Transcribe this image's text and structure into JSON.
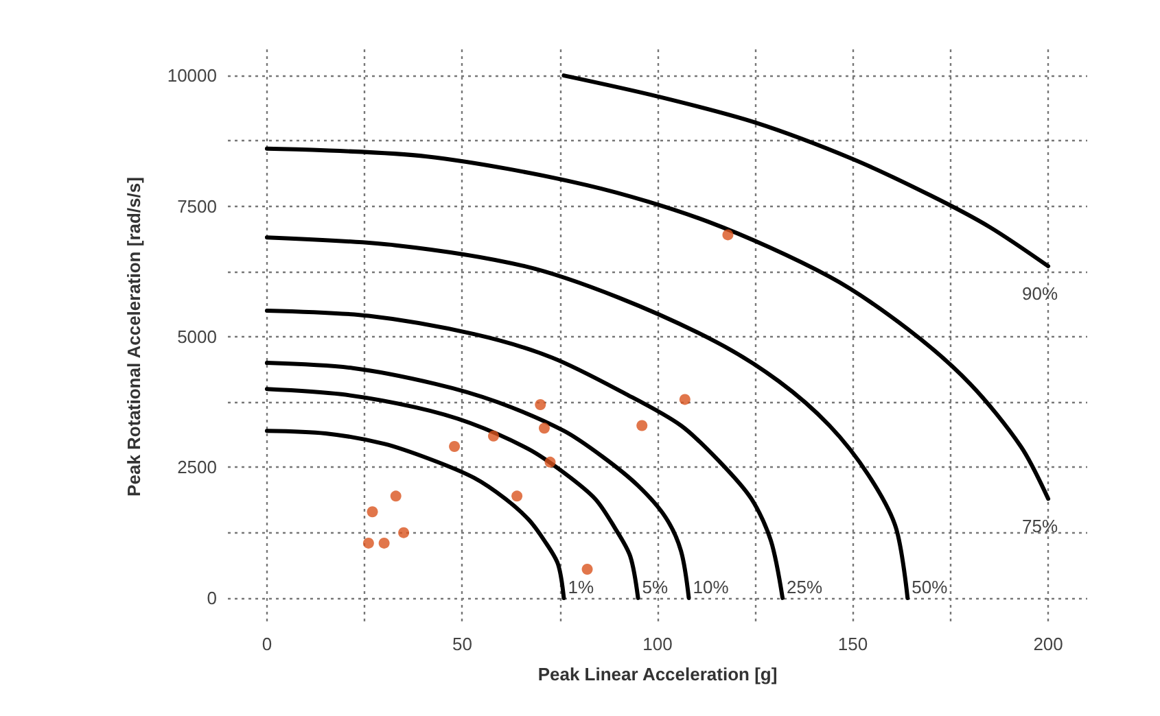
{
  "chart_data": {
    "type": "scatter",
    "xlabel": "Peak Linear Acceleration [g]",
    "ylabel": "Peak Rotational Acceleration [rad/s/s]",
    "xlim": [
      -10,
      210
    ],
    "ylim": [
      -500,
      10500
    ],
    "xticks": [
      0,
      {
        "value": 25,
        "label": null
      },
      50,
      {
        "value": 75,
        "label": null
      },
      100,
      {
        "value": 125,
        "label": null
      },
      150,
      {
        "value": 175,
        "label": null
      },
      200
    ],
    "yticks": [
      0,
      {
        "value": 1250,
        "label": null
      },
      2500,
      {
        "value": 3750,
        "label": null
      },
      5000,
      {
        "value": 6250,
        "label": null
      },
      7500,
      {
        "value": 8750,
        "label": null
      },
      10000
    ],
    "grid": true,
    "series": [
      {
        "marker": "circle",
        "color": "#d9541e",
        "x": [
          118,
          70,
          107,
          96,
          71,
          58,
          48,
          72.5,
          64,
          33,
          27,
          35,
          26,
          30,
          82
        ],
        "values": [
          6950,
          3700,
          3800,
          3300,
          3250,
          3100,
          2900,
          2600,
          1950,
          1950,
          1650,
          1250,
          1050,
          1050,
          550
        ]
      },
      {
        "type": "line",
        "name": "1%",
        "color": "#000000",
        "marker": "none",
        "line_style": "solid",
        "x": [
          0,
          15,
          30,
          42,
          53,
          61,
          67,
          71,
          74.5,
          76
        ],
        "values": [
          3200,
          3150,
          2950,
          2650,
          2300,
          1900,
          1500,
          1100,
          650,
          0
        ]
      },
      {
        "type": "line",
        "name": "5%",
        "color": "#000000",
        "marker": "none",
        "line_style": "solid",
        "x": [
          0,
          19,
          38,
          52,
          67,
          76,
          84,
          89,
          93,
          95
        ],
        "values": [
          4000,
          3900,
          3650,
          3350,
          2850,
          2400,
          1900,
          1350,
          800,
          0
        ]
      },
      {
        "type": "line",
        "name": "10%",
        "color": "#000000",
        "marker": "none",
        "line_style": "solid",
        "x": [
          0,
          22,
          43,
          59,
          76,
          86,
          95,
          102,
          106,
          108
        ],
        "values": [
          4500,
          4400,
          4100,
          3750,
          3200,
          2700,
          2150,
          1550,
          900,
          0
        ]
      },
      {
        "type": "line",
        "name": "25%",
        "color": "#000000",
        "marker": "none",
        "line_style": "solid",
        "x": [
          0,
          26,
          53,
          73,
          92,
          106,
          116,
          124,
          129,
          132
        ],
        "values": [
          5500,
          5400,
          5050,
          4600,
          3900,
          3300,
          2600,
          1900,
          1100,
          0
        ]
      },
      {
        "type": "line",
        "name": "50%",
        "color": "#000000",
        "marker": "none",
        "line_style": "solid",
        "x": [
          0,
          33,
          66,
          90,
          115,
          131,
          144,
          154,
          161,
          164
        ],
        "values": [
          6900,
          6750,
          6350,
          5750,
          4900,
          4150,
          3300,
          2350,
          1350,
          0
        ]
      },
      {
        "type": "line",
        "name": "75%",
        "color": "#000000",
        "marker": "none",
        "line_style": "solid",
        "x": [
          0,
          41,
          82,
          113,
          144,
          164,
          180,
          193,
          200
        ],
        "values": [
          8600,
          8450,
          7900,
          7200,
          6150,
          5150,
          4100,
          2900,
          1900
        ]
      },
      {
        "type": "line",
        "name": "90%",
        "color": "#000000",
        "marker": "none",
        "line_style": "solid",
        "x": [
          76,
          100,
          125,
          150,
          170,
          185,
          200
        ],
        "values": [
          10000,
          9600,
          9100,
          8400,
          7700,
          7100,
          6350
        ]
      }
    ]
  }
}
